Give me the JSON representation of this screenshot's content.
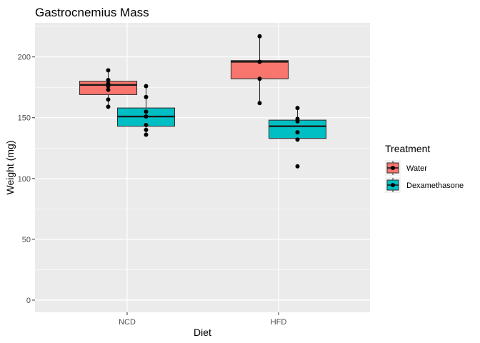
{
  "chart_data": {
    "type": "boxplot",
    "title": "Gastrocnemius Mass",
    "xlabel": "Diet",
    "ylabel": "Weight (mg)",
    "categories": [
      "NCD",
      "HFD"
    ],
    "ylim": [
      -10,
      228
    ],
    "yticks": [
      0,
      50,
      100,
      150,
      200
    ],
    "grid": true,
    "legend": {
      "title": "Treatment",
      "placement": "right"
    },
    "series": [
      {
        "name": "Water",
        "color": "#F8766D",
        "boxes": [
          {
            "category": "NCD",
            "q1": 169,
            "median": 177,
            "q3": 180,
            "whisker_low": 159,
            "whisker_high": 189,
            "points": [
              189,
              181,
              178,
              176,
              173,
              165,
              159
            ]
          },
          {
            "category": "HFD",
            "q1": 182,
            "median": 196,
            "q3": 197,
            "whisker_low": 162,
            "whisker_high": 217,
            "points": [
              217,
              196,
              182,
              162
            ]
          }
        ]
      },
      {
        "name": "Dexamethasone",
        "color": "#00BFC4",
        "boxes": [
          {
            "category": "NCD",
            "q1": 143,
            "median": 151,
            "q3": 158,
            "whisker_low": 136,
            "whisker_high": 176,
            "points": [
              176,
              167,
              155,
              151,
              144,
              140,
              136
            ]
          },
          {
            "category": "HFD",
            "q1": 133,
            "median": 143,
            "q3": 148,
            "whisker_low": 133,
            "whisker_high": 158,
            "points": [
              158,
              149,
              147,
              138,
              132,
              110
            ]
          }
        ]
      }
    ]
  }
}
